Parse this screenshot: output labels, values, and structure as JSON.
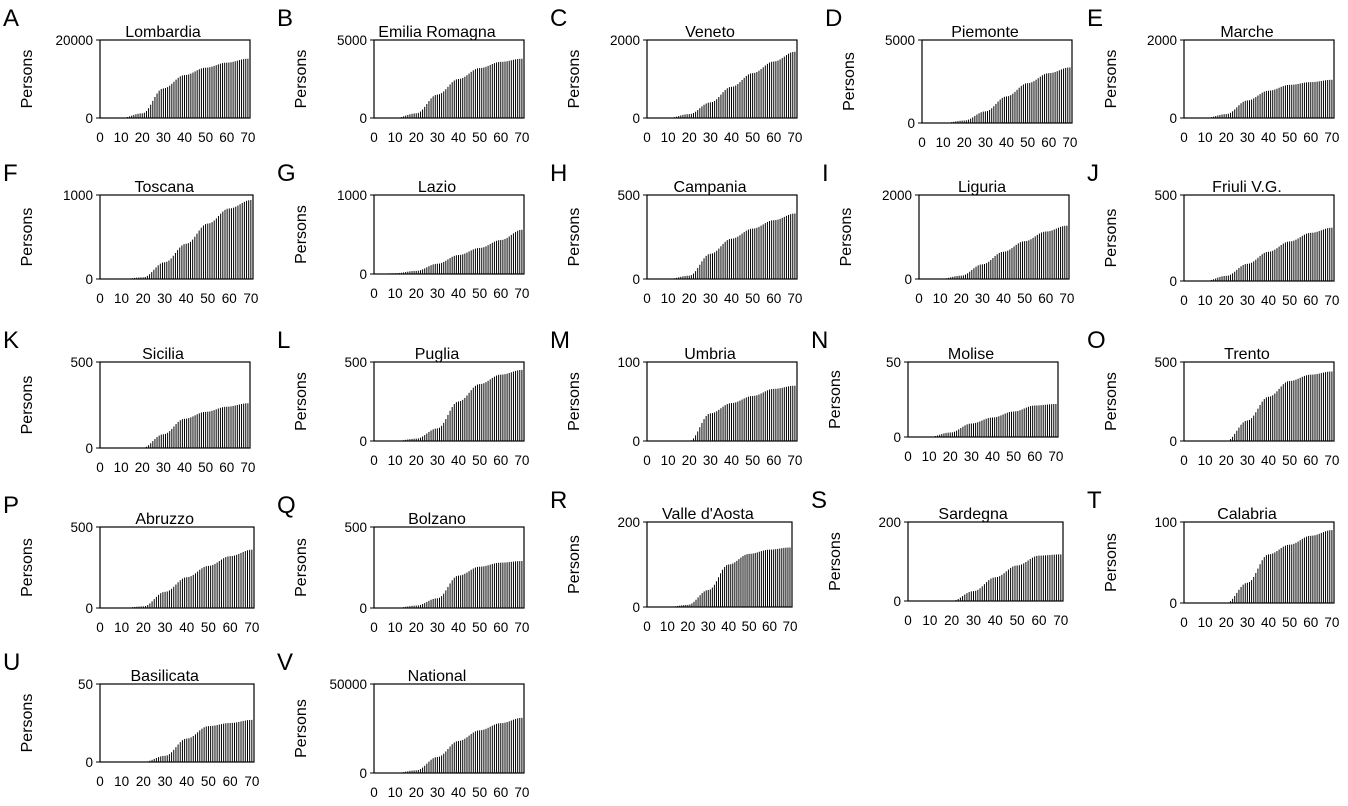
{
  "chart_data": [
    {
      "letter": "A",
      "title": "Lombardia",
      "ylabel": "Persons",
      "type": "bar",
      "y_max": 20000,
      "y_ticks": [
        0,
        20000
      ],
      "x_ticks": [
        0,
        10,
        20,
        30,
        40,
        50,
        60,
        70
      ],
      "xlim": [
        0,
        71
      ],
      "grid": false,
      "series": [
        {
          "x": [
            0,
            10,
            20,
            30,
            40,
            50,
            60,
            70
          ],
          "y": [
            0,
            0,
            1200,
            7600,
            11000,
            12900,
            14200,
            15200
          ]
        }
      ]
    },
    {
      "letter": "B",
      "title": "Emilia Romagna",
      "ylabel": "Persons",
      "type": "bar",
      "y_max": 5000,
      "y_ticks": [
        0,
        5000
      ],
      "x_ticks": [
        0,
        10,
        20,
        30,
        40,
        50,
        60,
        70
      ],
      "xlim": [
        0,
        71
      ],
      "grid": false,
      "series": [
        {
          "x": [
            0,
            10,
            20,
            30,
            40,
            50,
            60,
            70
          ],
          "y": [
            0,
            0,
            300,
            1500,
            2500,
            3200,
            3600,
            3800
          ]
        }
      ]
    },
    {
      "letter": "C",
      "title": "Veneto",
      "ylabel": "Persons",
      "type": "bar",
      "y_max": 2000,
      "y_ticks": [
        0,
        2000
      ],
      "x_ticks": [
        0,
        10,
        20,
        30,
        40,
        50,
        60,
        70
      ],
      "xlim": [
        0,
        71
      ],
      "grid": false,
      "series": [
        {
          "x": [
            0,
            10,
            20,
            30,
            40,
            50,
            60,
            70
          ],
          "y": [
            0,
            0,
            100,
            400,
            800,
            1150,
            1450,
            1700
          ]
        }
      ]
    },
    {
      "letter": "D",
      "title": "Piemonte",
      "ylabel": "Persons",
      "type": "bar",
      "y_max": 5000,
      "y_ticks": [
        0,
        5000
      ],
      "x_ticks": [
        0,
        10,
        20,
        30,
        40,
        50,
        60,
        70
      ],
      "xlim": [
        0,
        71
      ],
      "grid": false,
      "series": [
        {
          "x": [
            0,
            10,
            20,
            30,
            40,
            50,
            60,
            70
          ],
          "y": [
            0,
            0,
            150,
            700,
            1600,
            2400,
            3000,
            3350
          ]
        }
      ]
    },
    {
      "letter": "E",
      "title": "Marche",
      "ylabel": "Persons",
      "type": "bar",
      "y_max": 2000,
      "y_ticks": [
        0,
        2000
      ],
      "x_ticks": [
        0,
        10,
        20,
        30,
        40,
        50,
        60,
        70
      ],
      "xlim": [
        0,
        71
      ],
      "grid": false,
      "series": [
        {
          "x": [
            0,
            10,
            20,
            30,
            40,
            50,
            60,
            70
          ],
          "y": [
            0,
            0,
            100,
            450,
            700,
            850,
            920,
            980
          ]
        }
      ]
    },
    {
      "letter": "F",
      "title": "Toscana",
      "ylabel": "Persons",
      "type": "bar",
      "y_max": 1000,
      "y_ticks": [
        0,
        1000
      ],
      "x_ticks": [
        0,
        10,
        20,
        30,
        40,
        50,
        60,
        70
      ],
      "xlim": [
        0,
        71
      ],
      "grid": false,
      "series": [
        {
          "x": [
            0,
            10,
            20,
            30,
            40,
            50,
            60,
            70
          ],
          "y": [
            0,
            0,
            20,
            200,
            420,
            660,
            840,
            940
          ]
        }
      ]
    },
    {
      "letter": "G",
      "title": "Lazio",
      "ylabel": "Persons",
      "type": "bar",
      "y_max": 1000,
      "y_ticks": [
        0,
        1000
      ],
      "x_ticks": [
        0,
        10,
        20,
        30,
        40,
        50,
        60,
        70
      ],
      "xlim": [
        0,
        71
      ],
      "grid": false,
      "series": [
        {
          "x": [
            0,
            10,
            20,
            30,
            40,
            50,
            60,
            70
          ],
          "y": [
            0,
            10,
            40,
            130,
            240,
            330,
            430,
            560
          ]
        }
      ]
    },
    {
      "letter": "H",
      "title": "Campania",
      "ylabel": "Persons",
      "type": "bar",
      "y_max": 500,
      "y_ticks": [
        0,
        500
      ],
      "x_ticks": [
        0,
        10,
        20,
        30,
        40,
        50,
        60,
        70
      ],
      "xlim": [
        0,
        71
      ],
      "grid": false,
      "series": [
        {
          "x": [
            0,
            10,
            20,
            30,
            40,
            50,
            60,
            70
          ],
          "y": [
            0,
            0,
            20,
            150,
            240,
            300,
            350,
            390
          ]
        }
      ]
    },
    {
      "letter": "I",
      "title": "Liguria",
      "ylabel": "Persons",
      "type": "bar",
      "y_max": 2000,
      "y_ticks": [
        0,
        2000
      ],
      "x_ticks": [
        0,
        10,
        20,
        30,
        40,
        50,
        60,
        70
      ],
      "xlim": [
        0,
        71
      ],
      "grid": false,
      "series": [
        {
          "x": [
            0,
            10,
            20,
            30,
            40,
            50,
            60,
            70
          ],
          "y": [
            0,
            0,
            80,
            350,
            650,
            900,
            1130,
            1270
          ]
        }
      ]
    },
    {
      "letter": "J",
      "title": "Friuli V.G.",
      "ylabel": "Persons",
      "type": "bar",
      "y_max": 500,
      "y_ticks": [
        0,
        500
      ],
      "x_ticks": [
        0,
        10,
        20,
        30,
        40,
        50,
        60,
        70
      ],
      "xlim": [
        0,
        71
      ],
      "grid": false,
      "series": [
        {
          "x": [
            0,
            10,
            20,
            30,
            40,
            50,
            60,
            70
          ],
          "y": [
            0,
            0,
            30,
            100,
            170,
            230,
            280,
            310
          ]
        }
      ]
    },
    {
      "letter": "K",
      "title": "Sicilia",
      "ylabel": "Persons",
      "type": "bar",
      "y_max": 500,
      "y_ticks": [
        0,
        500
      ],
      "x_ticks": [
        0,
        10,
        20,
        30,
        40,
        50,
        60,
        70
      ],
      "xlim": [
        0,
        71
      ],
      "grid": false,
      "series": [
        {
          "x": [
            0,
            10,
            20,
            30,
            40,
            50,
            60,
            70
          ],
          "y": [
            0,
            0,
            0,
            80,
            170,
            210,
            240,
            260
          ]
        }
      ]
    },
    {
      "letter": "L",
      "title": "Puglia",
      "ylabel": "Persons",
      "type": "bar",
      "y_max": 500,
      "y_ticks": [
        0,
        500
      ],
      "x_ticks": [
        0,
        10,
        20,
        30,
        40,
        50,
        60,
        70
      ],
      "xlim": [
        0,
        71
      ],
      "grid": false,
      "series": [
        {
          "x": [
            0,
            10,
            20,
            30,
            40,
            50,
            60,
            70
          ],
          "y": [
            0,
            0,
            15,
            80,
            250,
            360,
            420,
            450
          ]
        }
      ]
    },
    {
      "letter": "M",
      "title": "Umbria",
      "ylabel": "Persons",
      "type": "bar",
      "y_max": 100,
      "y_ticks": [
        0,
        100
      ],
      "x_ticks": [
        0,
        10,
        20,
        30,
        40,
        50,
        60,
        70
      ],
      "xlim": [
        0,
        71
      ],
      "grid": false,
      "series": [
        {
          "x": [
            0,
            10,
            20,
            30,
            40,
            50,
            60,
            70
          ],
          "y": [
            0,
            0,
            0,
            35,
            48,
            57,
            66,
            70
          ]
        }
      ]
    },
    {
      "letter": "N",
      "title": "Molise",
      "ylabel": "Persons",
      "type": "bar",
      "y_max": 50,
      "y_ticks": [
        0,
        50
      ],
      "x_ticks": [
        0,
        10,
        20,
        30,
        40,
        50,
        60,
        70
      ],
      "xlim": [
        0,
        71
      ],
      "grid": false,
      "series": [
        {
          "x": [
            0,
            10,
            20,
            30,
            40,
            50,
            60,
            70
          ],
          "y": [
            0,
            0,
            3,
            9,
            13,
            17,
            21,
            22
          ]
        }
      ]
    },
    {
      "letter": "O",
      "title": "Trento",
      "ylabel": "Persons",
      "type": "bar",
      "y_max": 500,
      "y_ticks": [
        0,
        500
      ],
      "x_ticks": [
        0,
        10,
        20,
        30,
        40,
        50,
        60,
        70
      ],
      "xlim": [
        0,
        71
      ],
      "grid": false,
      "series": [
        {
          "x": [
            0,
            10,
            20,
            30,
            40,
            50,
            60,
            70
          ],
          "y": [
            0,
            0,
            0,
            130,
            280,
            380,
            420,
            440
          ]
        }
      ]
    },
    {
      "letter": "P",
      "title": "Abruzzo",
      "ylabel": "Persons",
      "type": "bar",
      "y_max": 500,
      "y_ticks": [
        0,
        500
      ],
      "x_ticks": [
        0,
        10,
        20,
        30,
        40,
        50,
        60,
        70
      ],
      "xlim": [
        0,
        71
      ],
      "grid": false,
      "series": [
        {
          "x": [
            0,
            10,
            20,
            30,
            40,
            50,
            60,
            70
          ],
          "y": [
            0,
            0,
            10,
            100,
            190,
            260,
            320,
            360
          ]
        }
      ]
    },
    {
      "letter": "Q",
      "title": "Bolzano",
      "ylabel": "Persons",
      "type": "bar",
      "y_max": 500,
      "y_ticks": [
        0,
        500
      ],
      "x_ticks": [
        0,
        10,
        20,
        30,
        40,
        50,
        60,
        70
      ],
      "xlim": [
        0,
        71
      ],
      "grid": false,
      "series": [
        {
          "x": [
            0,
            10,
            20,
            30,
            40,
            50,
            60,
            70
          ],
          "y": [
            0,
            0,
            15,
            60,
            200,
            255,
            280,
            290
          ]
        }
      ]
    },
    {
      "letter": "R",
      "title": "Valle d'Aosta",
      "ylabel": "Persons",
      "type": "bar",
      "y_max": 200,
      "y_ticks": [
        0,
        200
      ],
      "x_ticks": [
        0,
        10,
        20,
        30,
        40,
        50,
        60,
        70
      ],
      "xlim": [
        0,
        71
      ],
      "grid": false,
      "series": [
        {
          "x": [
            0,
            10,
            20,
            30,
            40,
            50,
            60,
            70
          ],
          "y": [
            0,
            0,
            5,
            40,
            100,
            125,
            135,
            140
          ]
        }
      ]
    },
    {
      "letter": "S",
      "title": "Sardegna",
      "ylabel": "Persons",
      "type": "bar",
      "y_max": 200,
      "y_ticks": [
        0,
        200
      ],
      "x_ticks": [
        0,
        10,
        20,
        30,
        40,
        50,
        60,
        70
      ],
      "xlim": [
        0,
        71
      ],
      "grid": false,
      "series": [
        {
          "x": [
            0,
            10,
            20,
            30,
            40,
            50,
            60,
            70
          ],
          "y": [
            0,
            0,
            0,
            25,
            60,
            90,
            115,
            118
          ]
        }
      ]
    },
    {
      "letter": "T",
      "title": "Calabria",
      "ylabel": "Persons",
      "type": "bar",
      "y_max": 100,
      "y_ticks": [
        0,
        100
      ],
      "x_ticks": [
        0,
        10,
        20,
        30,
        40,
        50,
        60,
        70
      ],
      "xlim": [
        0,
        71
      ],
      "grid": false,
      "series": [
        {
          "x": [
            0,
            10,
            20,
            30,
            40,
            50,
            60,
            70
          ],
          "y": [
            0,
            0,
            0,
            25,
            60,
            72,
            83,
            90
          ]
        }
      ]
    },
    {
      "letter": "U",
      "title": "Basilicata",
      "ylabel": "Persons",
      "type": "bar",
      "y_max": 50,
      "y_ticks": [
        0,
        50
      ],
      "x_ticks": [
        0,
        10,
        20,
        30,
        40,
        50,
        60,
        70
      ],
      "xlim": [
        0,
        71
      ],
      "grid": false,
      "series": [
        {
          "x": [
            0,
            10,
            20,
            30,
            40,
            50,
            60,
            70
          ],
          "y": [
            0,
            0,
            0,
            4,
            15,
            23,
            25,
            27
          ]
        }
      ]
    },
    {
      "letter": "V",
      "title": "National",
      "ylabel": "Persons",
      "type": "bar",
      "y_max": 50000,
      "y_ticks": [
        0,
        50000
      ],
      "x_ticks": [
        0,
        10,
        20,
        30,
        40,
        50,
        60,
        70
      ],
      "xlim": [
        0,
        71
      ],
      "grid": false,
      "series": [
        {
          "x": [
            0,
            10,
            20,
            30,
            40,
            50,
            60,
            70
          ],
          "y": [
            0,
            0,
            1500,
            9000,
            18000,
            24000,
            28000,
            31000
          ]
        }
      ]
    }
  ]
}
